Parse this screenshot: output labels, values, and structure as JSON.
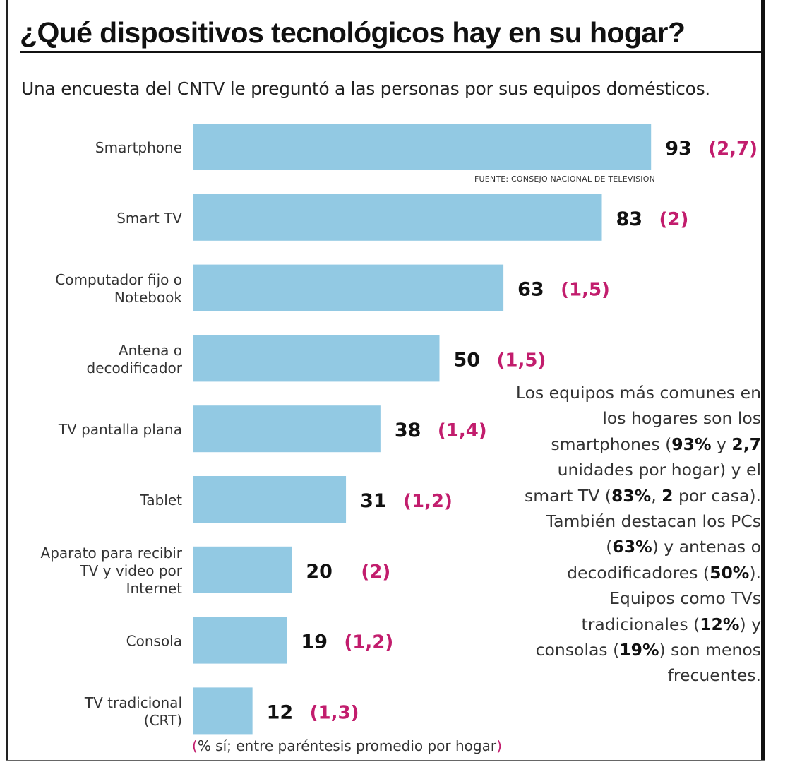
{
  "title": "¿Qué dispositivos tecnológicos hay en su hogar?",
  "subtitle": "Una encuesta del CNTV le preguntó a las personas por sus equipos domésticos.",
  "source": "FUENTE: CONSEJO NACIONAL DE TELEVISION",
  "note": {
    "parts": [
      {
        "t": "Los equipos más comunes en los hogares son los smartphones (",
        "b": false
      },
      {
        "t": "93%",
        "b": true
      },
      {
        "t": " y ",
        "b": false
      },
      {
        "t": "2,7",
        "b": true
      },
      {
        "t": " unidades por hogar) y el smart TV (",
        "b": false
      },
      {
        "t": "83%",
        "b": true
      },
      {
        "t": ", ",
        "b": false
      },
      {
        "t": "2",
        "b": true
      },
      {
        "t": " por casa). También destacan los PCs (",
        "b": false
      },
      {
        "t": "63%",
        "b": true
      },
      {
        "t": ") y antenas o decodificadores (",
        "b": false
      },
      {
        "t": "50%",
        "b": true
      },
      {
        "t": "). Equipos como TVs tradicionales (",
        "b": false
      },
      {
        "t": "12%",
        "b": true
      },
      {
        "t": ") y consolas (",
        "b": false
      },
      {
        "t": "19%",
        "b": true
      },
      {
        "t": ") son menos frecuentes.",
        "b": false
      }
    ]
  },
  "footnote": {
    "open": "(",
    "text": "% sí; entre paréntesis promedio por hogar",
    "close": ")"
  },
  "chart_data": {
    "type": "bar",
    "orientation": "horizontal",
    "categories": [
      [
        "Smartphone"
      ],
      [
        "Smart TV"
      ],
      [
        "Computador fijo o",
        "Notebook"
      ],
      [
        "Antena o",
        "decodificador"
      ],
      [
        "TV pantalla plana"
      ],
      [
        "Tablet"
      ],
      [
        "Aparato para recibir",
        "TV y video por",
        "Internet"
      ],
      [
        "Consola"
      ],
      [
        "TV tradicional",
        "(CRT)"
      ]
    ],
    "values": [
      93,
      83,
      63,
      50,
      38,
      31,
      20,
      19,
      12
    ],
    "secondary_labels": [
      "(2,7)",
      "(2)",
      "(1,5)",
      "(1,5)",
      "(1,4)",
      "(1,2)",
      "(2)",
      "(1,2)",
      "(1,3)"
    ],
    "grid": false,
    "legend": "none"
  },
  "colors": {
    "bar": "#92c9e3",
    "value_text": "#111111",
    "average_text": "#c21d6d",
    "label_text": "#333333"
  }
}
